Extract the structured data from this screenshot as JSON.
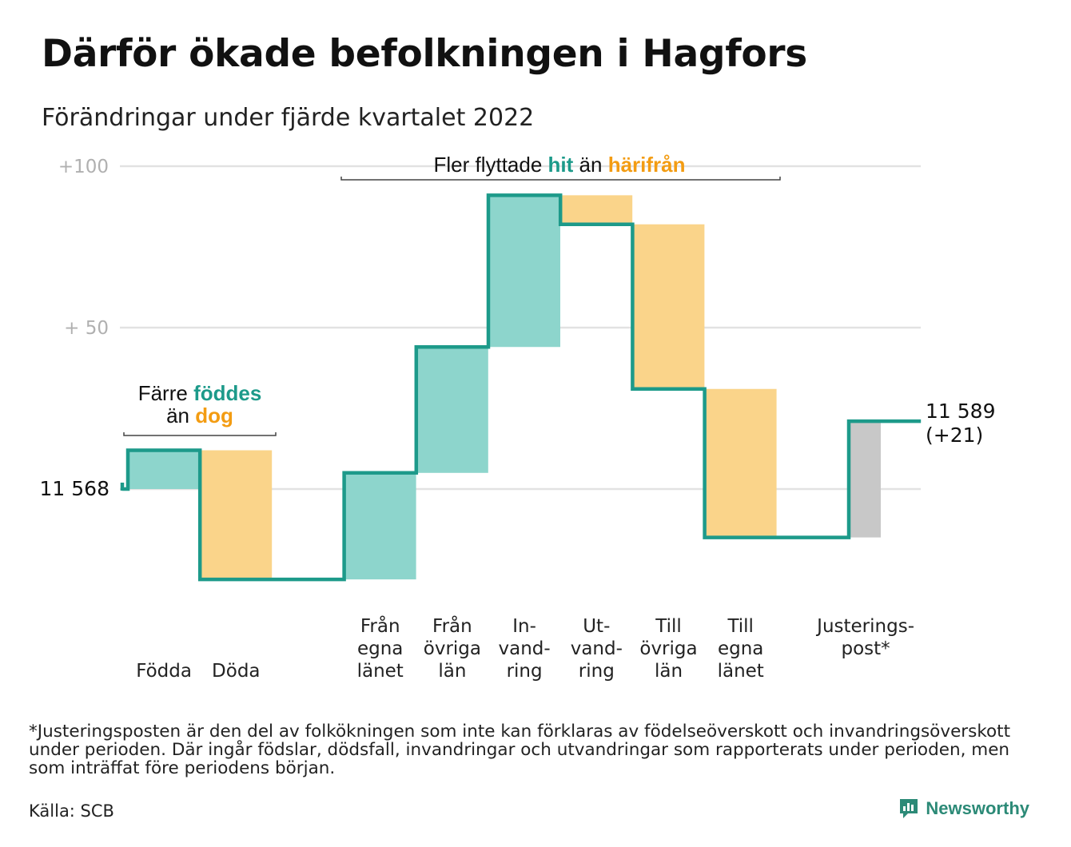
{
  "header": {
    "title": "Därför ökade befolkningen i Hagfors",
    "subtitle": "Förändringar under fjärde kvartalet 2022"
  },
  "annotations": {
    "births_deaths": {
      "line1_prefix": "Färre",
      "line1_highlight": "föddes",
      "line2_prefix": "än",
      "line2_highlight": "dog"
    },
    "migration": {
      "prefix": "Fler flyttade",
      "highlight1": "hit",
      "middle": "än",
      "highlight2": "härifrån"
    }
  },
  "start_label": "11 568",
  "end_label": {
    "line1": "11 589",
    "line2": "(+21)"
  },
  "footnote": "*Justeringsposten är den del av folkökningen som inte kan förklaras av födelseöverskott och invandringsöverskott under perioden. Där ingår födslar, dödsfall, invandringar och utvandringar som rapporterats under perioden, men som inträffat före periodens början.",
  "source": "Källa: SCB",
  "brand": {
    "name": "Newsworthy",
    "icon": "newsworthy-logo-icon"
  },
  "colors": {
    "increase": "#8dd5cc",
    "decrease": "#fad48a",
    "adjustment": "#c8c8c8",
    "line": "#1d9a8a",
    "hit": "#1d9a8a",
    "harifran": "#f39c12",
    "grid": "#e2e2e2"
  },
  "chart_data": {
    "type": "waterfall",
    "y_ticks": [
      {
        "value": 100,
        "label": "+100"
      },
      {
        "value": 50,
        "label": "+ 50"
      },
      {
        "value": 0,
        "label": ""
      }
    ],
    "ylim": [
      -30,
      100
    ],
    "start_value": 11568,
    "end_value": 11589,
    "net_change": 21,
    "steps": [
      {
        "label": [
          "",
          "",
          "Födda"
        ],
        "change": 12,
        "kind": "increase"
      },
      {
        "label": [
          "",
          "",
          "Döda"
        ],
        "change": -40,
        "kind": "decrease"
      },
      {
        "label": [
          "",
          "",
          ""
        ],
        "change": 0,
        "kind": "gap"
      },
      {
        "label": [
          "Från",
          "egna",
          "länet"
        ],
        "change": 33,
        "kind": "increase"
      },
      {
        "label": [
          "Från",
          "övriga",
          "län"
        ],
        "change": 39,
        "kind": "increase"
      },
      {
        "label": [
          "In-",
          "vand-",
          "ring"
        ],
        "change": 47,
        "kind": "increase"
      },
      {
        "label": [
          "Ut-",
          "vand-",
          "ring"
        ],
        "change": -9,
        "kind": "decrease"
      },
      {
        "label": [
          "Till",
          "övriga",
          "län"
        ],
        "change": -51,
        "kind": "decrease"
      },
      {
        "label": [
          "Till",
          "egna",
          "länet"
        ],
        "change": -46,
        "kind": "decrease"
      },
      {
        "label": [
          "",
          "",
          ""
        ],
        "change": 0,
        "kind": "gap"
      },
      {
        "label": [
          "Justerings-",
          "post*",
          ""
        ],
        "change": 36,
        "kind": "adjustment"
      }
    ]
  }
}
